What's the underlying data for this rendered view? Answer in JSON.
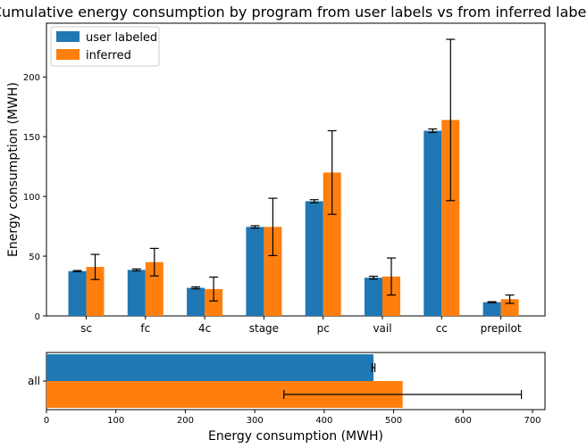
{
  "chart_data": [
    {
      "type": "bar",
      "title": "Cumulative energy consumption by program from user labels vs from inferred labels",
      "xlabel": "",
      "ylabel": "Energy consumption (MWH)",
      "categories": [
        "sc",
        "fc",
        "4c",
        "stage",
        "pc",
        "vail",
        "cc",
        "prepilot"
      ],
      "ylim": [
        0,
        245
      ],
      "yticks": [
        0,
        50,
        100,
        150,
        200
      ],
      "grid": false,
      "legend": "top-left",
      "series": [
        {
          "name": "user labeled",
          "color": "#1f77b4",
          "values": [
            37.5,
            38.5,
            23.5,
            74.5,
            96,
            32,
            155,
            11.5
          ],
          "err": [
            0.5,
            0.8,
            0.8,
            1.0,
            1.3,
            1.2,
            1.5,
            0.4
          ]
        },
        {
          "name": "inferred",
          "color": "#ff7f0e",
          "values": [
            41,
            45,
            22.5,
            74.5,
            120,
            33,
            164,
            14
          ],
          "err": [
            10.5,
            11.5,
            10,
            24,
            35,
            15.5,
            67.5,
            3.5
          ]
        }
      ]
    },
    {
      "type": "bar",
      "orientation": "horizontal",
      "title": "",
      "xlabel": "Energy consumption (MWH)",
      "ylabel": "",
      "categories": [
        "all"
      ],
      "xlim": [
        0,
        718
      ],
      "xticks": [
        0,
        100,
        200,
        300,
        400,
        500,
        600,
        700
      ],
      "grid": false,
      "series": [
        {
          "name": "user labeled",
          "color": "#1f77b4",
          "values": [
            471
          ],
          "err": [
            2
          ]
        },
        {
          "name": "inferred",
          "color": "#ff7f0e",
          "values": [
            513
          ],
          "err": [
            171
          ]
        }
      ]
    }
  ]
}
